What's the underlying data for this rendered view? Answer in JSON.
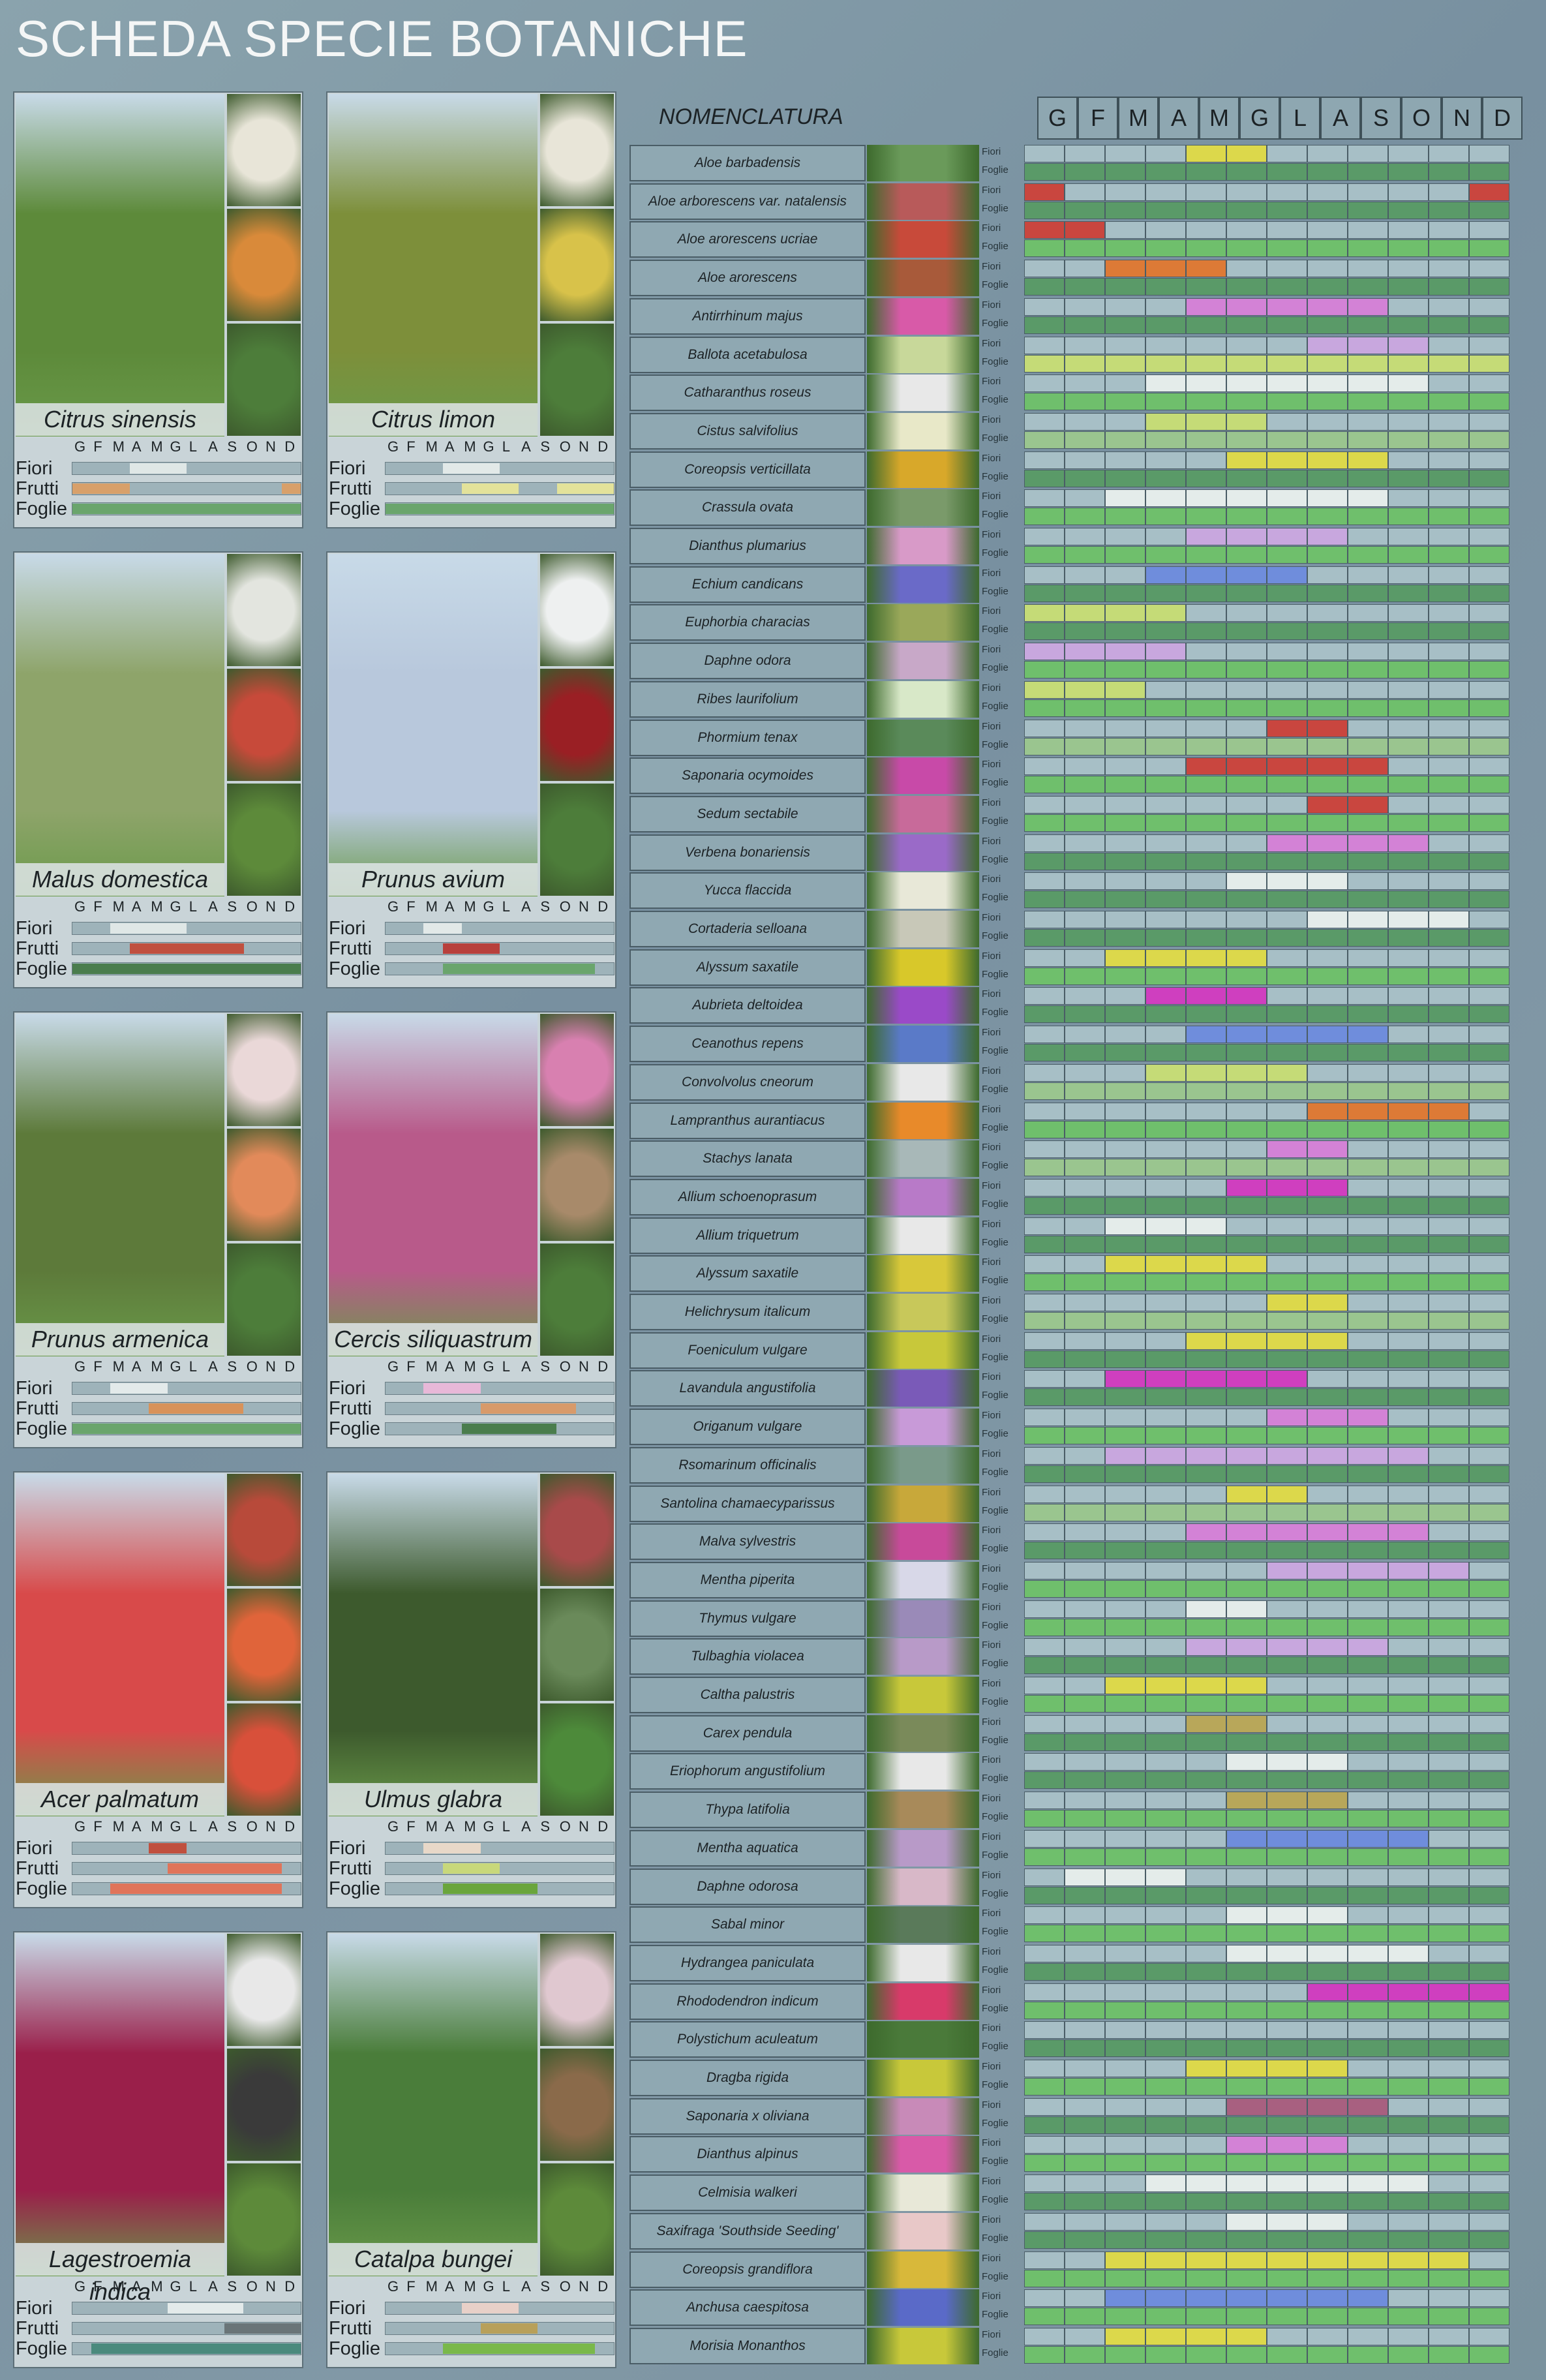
{
  "title": "SCHEDA SPECIE BOTANICHE",
  "months": [
    "G",
    "F",
    "M",
    "A",
    "M",
    "G",
    "L",
    "A",
    "S",
    "O",
    "N",
    "D"
  ],
  "card_labels": {
    "fiori": "Fiori",
    "frutti": "Frutti",
    "foglie": "Foglie"
  },
  "colors": {
    "fogliaA": "#5a9a68",
    "fogliaB": "#6fbf6c",
    "fogliaC": "#9ac58f",
    "grigio": "#a7bfc6",
    "bianco": "#e4ecea",
    "giallo": "#dcd84b",
    "rosso": "#c9463f",
    "rosa": "#d382d6",
    "lilla": "#c8a7de",
    "arancio": "#dd7a36",
    "magenta": "#cf3fbf",
    "blu": "#6f8ddc",
    "verdechiaro": "#c5db77",
    "ocra": "#b8a75a",
    "porpora": "#a86080"
  },
  "cards": [
    {
      "name": "Citrus sinensis",
      "photo": "#5d8a3a",
      "thumbs": [
        "#e8e5d8",
        "#d98a3a",
        "#4d7d3a"
      ],
      "fiori": {
        "c": "#dfe7e6",
        "s": [
          3,
          6
        ]
      },
      "frutti": {
        "c": "#d8a06a",
        "s": [
          0,
          3
        ],
        "s2": [
          11,
          12
        ]
      },
      "foglie": {
        "c": "#6aa56c",
        "s": [
          0,
          12
        ]
      }
    },
    {
      "name": "Citrus limon",
      "photo": "#7d8f3a",
      "thumbs": [
        "#e8e5d8",
        "#d8c24a",
        "#4d7d3a"
      ],
      "fiori": {
        "c": "#e2e9e8",
        "s": [
          3,
          6
        ]
      },
      "frutti": {
        "c": "#e3e29a",
        "s": [
          4,
          7
        ],
        "s2": [
          9,
          12
        ]
      },
      "foglie": {
        "c": "#6aa56c",
        "s": [
          0,
          12
        ]
      }
    },
    {
      "name": "Malus domestica",
      "photo": "#8ea46a",
      "thumbs": [
        "#e3e5df",
        "#c74a3a",
        "#5d8a3a"
      ],
      "fiori": {
        "c": "#dfe7e6",
        "s": [
          2,
          6
        ]
      },
      "frutti": {
        "c": "#c0503f",
        "s": [
          3,
          9
        ]
      },
      "foglie": {
        "c": "#4a7d4d",
        "s": [
          0,
          12
        ]
      }
    },
    {
      "name": "Prunus avium",
      "photo": "#b8c8dc",
      "thumbs": [
        "#eef0f0",
        "#9a1f24",
        "#4d7d3a"
      ],
      "fiori": {
        "c": "#e2e9e8",
        "s": [
          2,
          4
        ]
      },
      "frutti": {
        "c": "#b8403c",
        "s": [
          3,
          6
        ]
      },
      "foglie": {
        "c": "#6aa56c",
        "s": [
          3,
          11
        ]
      }
    },
    {
      "name": "Prunus armenica",
      "photo": "#5d7a3a",
      "thumbs": [
        "#ead8d8",
        "#e28a5a",
        "#4d7d3a"
      ],
      "fiori": {
        "c": "#e3eaea",
        "s": [
          2,
          5
        ]
      },
      "frutti": {
        "c": "#d8925a",
        "s": [
          4,
          9
        ]
      },
      "foglie": {
        "c": "#6aa56c",
        "s": [
          0,
          12
        ]
      }
    },
    {
      "name": "Cercis siliquastrum",
      "photo": "#b85a8a",
      "thumbs": [
        "#d880b0",
        "#a88a6a",
        "#4d7d3a"
      ],
      "fiori": {
        "c": "#e8b8d8",
        "s": [
          2,
          5
        ]
      },
      "frutti": {
        "c": "#d89a6a",
        "s": [
          5,
          10
        ]
      },
      "foglie": {
        "c": "#4a7d4d",
        "s": [
          4,
          9
        ]
      }
    },
    {
      "name": "Acer palmatum",
      "photo": "#d84a4a",
      "thumbs": [
        "#b84a3a",
        "#e0643a",
        "#d8503a"
      ],
      "fiori": {
        "c": "#c0503f",
        "s": [
          4,
          6
        ]
      },
      "frutti": {
        "c": "#e0745a",
        "s": [
          5,
          11
        ]
      },
      "foglie": {
        "c": "#e0745a",
        "s": [
          2,
          11
        ]
      }
    },
    {
      "name": "Ulmus glabra",
      "photo": "#3d5a2d",
      "thumbs": [
        "#a84a4a",
        "#6a8a5a",
        "#4d8a3a"
      ],
      "fiori": {
        "c": "#e8d8c8",
        "s": [
          2,
          5
        ]
      },
      "frutti": {
        "c": "#c8d87a",
        "s": [
          3,
          6
        ]
      },
      "foglie": {
        "c": "#6aa53c",
        "s": [
          3,
          8
        ]
      }
    },
    {
      "name": "Lagestroemia indica",
      "photo": "#9a1f4a",
      "thumbs": [
        "#e8e8e8",
        "#3a3a3a",
        "#5d8a3a"
      ],
      "fiori": {
        "c": "#e3eaea",
        "s": [
          5,
          9
        ]
      },
      "frutti": {
        "c": "#6a7578",
        "s": [
          8,
          12
        ]
      },
      "foglie": {
        "c": "#4a8a7d",
        "s": [
          1,
          12
        ]
      }
    },
    {
      "name": "Catalpa bungei",
      "photo": "#4a7d3a",
      "thumbs": [
        "#e0c8d0",
        "#8a6a4a",
        "#5d8a3a"
      ],
      "fiori": {
        "c": "#e8d0c8",
        "s": [
          4,
          7
        ]
      },
      "frutti": {
        "c": "#b8a05a",
        "s": [
          5,
          8
        ]
      },
      "foglie": {
        "c": "#7ab84a",
        "s": [
          3,
          11
        ]
      }
    }
  ],
  "table": {
    "header": "NOMENCLATURA",
    "fiori_label": "Fiori",
    "foglie_label": "Foglie",
    "plants": [
      {
        "name": "Aloe barbadensis",
        "img": "#6a9a5a",
        "fl": [
          "giallo",
          4,
          6
        ],
        "fo": "fogliaA"
      },
      {
        "name": "Aloe arborescens var. natalensis",
        "img": "#b85a5a",
        "fl": [
          "rosso",
          0,
          1
        ],
        "fl2": [
          "rosso",
          11,
          12
        ],
        "fo": "fogliaA"
      },
      {
        "name": "Aloe arorescens ucriae",
        "img": "#c84a3a",
        "fl": [
          "rosso",
          0,
          2
        ],
        "fo": "fogliaB"
      },
      {
        "name": "Aloe arorescens",
        "img": "#a85a3a",
        "fl": [
          "arancio",
          2,
          5
        ],
        "fo": "fogliaA"
      },
      {
        "name": "Antirrhinum majus",
        "img": "#d85aa8",
        "fl": [
          "rosa",
          4,
          9
        ],
        "fo": "fogliaA"
      },
      {
        "name": "Ballota acetabulosa",
        "img": "#c8d89a",
        "fl": [
          "lilla",
          7,
          10
        ],
        "fo": "verdechiaro"
      },
      {
        "name": "Catharanthus roseus",
        "img": "#e8e8e8",
        "fl": [
          "bianco",
          3,
          10
        ],
        "fo": "fogliaB"
      },
      {
        "name": "Cistus salvifolius",
        "img": "#e8e8c8",
        "fl": [
          "verdechiaro",
          3,
          6
        ],
        "fo": "fogliaC"
      },
      {
        "name": "Coreopsis verticillata",
        "img": "#d8a82a",
        "fl": [
          "giallo",
          5,
          9
        ],
        "fo": "fogliaA"
      },
      {
        "name": "Crassula ovata",
        "img": "#7a9a6a",
        "fl": [
          "bianco",
          2,
          9
        ],
        "fo": "fogliaB"
      },
      {
        "name": "Dianthus plumarius",
        "img": "#d89ac8",
        "fl": [
          "lilla",
          4,
          8
        ],
        "fo": "fogliaB"
      },
      {
        "name": "Echium candicans",
        "img": "#6a6ac8",
        "fl": [
          "blu",
          3,
          7
        ],
        "fo": "fogliaA"
      },
      {
        "name": "Euphorbia characias",
        "img": "#9aa85a",
        "fl": [
          "verdechiaro",
          0,
          4
        ],
        "fo": "fogliaA"
      },
      {
        "name": "Daphne odora",
        "img": "#c8a8c8",
        "fl": [
          "lilla",
          0,
          4
        ],
        "fo": "fogliaB"
      },
      {
        "name": "Ribes laurifolium",
        "img": "#d8e8c8",
        "fl": [
          "verdechiaro",
          0,
          3
        ],
        "fo": "fogliaB"
      },
      {
        "name": "Phormium tenax",
        "img": "#5a8a5a",
        "fl": [
          "rosso",
          6,
          8
        ],
        "fo": "fogliaC"
      },
      {
        "name": "Saponaria ocymoides",
        "img": "#c84aa8",
        "fl": [
          "rosso",
          4,
          9
        ],
        "fo": "fogliaB"
      },
      {
        "name": "Sedum sectabile",
        "img": "#c86a9a",
        "fl": [
          "rosso",
          7,
          9
        ],
        "fo": "fogliaB"
      },
      {
        "name": "Verbena bonariensis",
        "img": "#9a6ac8",
        "fl": [
          "rosa",
          6,
          10
        ],
        "fo": "fogliaA"
      },
      {
        "name": "Yucca flaccida",
        "img": "#e8e8d8",
        "fl": [
          "bianco",
          5,
          8
        ],
        "fo": "fogliaA"
      },
      {
        "name": "Cortaderia selloana",
        "img": "#c8c8b8",
        "fl": [
          "bianco",
          7,
          11
        ],
        "fo": "fogliaA"
      },
      {
        "name": "Alyssum saxatile",
        "img": "#d8c82a",
        "fl": [
          "giallo",
          2,
          6
        ],
        "fo": "fogliaB"
      },
      {
        "name": "Aubrieta deltoidea",
        "img": "#9a4ac8",
        "fl": [
          "magenta",
          3,
          6
        ],
        "fo": "fogliaA"
      },
      {
        "name": "Ceanothus repens",
        "img": "#5a7ac8",
        "fl": [
          "blu",
          4,
          9
        ],
        "fo": "fogliaA"
      },
      {
        "name": "Convolvolus cneorum",
        "img": "#e8e8e8",
        "fl": [
          "verdechiaro",
          3,
          7
        ],
        "fo": "fogliaC"
      },
      {
        "name": "Lampranthus aurantiacus",
        "img": "#e88a2a",
        "fl": [
          "arancio",
          7,
          11
        ],
        "fo": "fogliaB"
      },
      {
        "name": "Stachys lanata",
        "img": "#a8b8b8",
        "fl": [
          "rosa",
          6,
          8
        ],
        "fo": "fogliaC"
      },
      {
        "name": "Allium schoenoprasum",
        "img": "#b87ac8",
        "fl": [
          "magenta",
          5,
          8
        ],
        "fo": "fogliaA"
      },
      {
        "name": "Allium triquetrum",
        "img": "#e8e8e8",
        "fl": [
          "bianco",
          2,
          5
        ],
        "fo": "fogliaA"
      },
      {
        "name": "Alyssum saxatile",
        "img": "#d8c83a",
        "fl": [
          "giallo",
          2,
          6
        ],
        "fo": "fogliaB"
      },
      {
        "name": "Helichrysum italicum",
        "img": "#c8c85a",
        "fl": [
          "giallo",
          6,
          8
        ],
        "fo": "fogliaC"
      },
      {
        "name": "Foeniculum vulgare",
        "img": "#c8c83a",
        "fl": [
          "giallo",
          4,
          8
        ],
        "fo": "fogliaA"
      },
      {
        "name": "Lavandula angustifolia",
        "img": "#7a5ab8",
        "fl": [
          "magenta",
          2,
          7
        ],
        "fo": "fogliaA"
      },
      {
        "name": "Origanum vulgare",
        "img": "#c89ad8",
        "fl": [
          "rosa",
          6,
          9
        ],
        "fo": "fogliaB"
      },
      {
        "name": "Rsomarinum officinalis",
        "img": "#7a9a8a",
        "fl": [
          "lilla",
          2,
          10
        ],
        "fo": "fogliaA"
      },
      {
        "name": "Santolina chamaecyparissus",
        "img": "#c8a83a",
        "fl": [
          "giallo",
          5,
          7
        ],
        "fo": "fogliaC"
      },
      {
        "name": "Malva sylvestris",
        "img": "#c84a9a",
        "fl": [
          "rosa",
          4,
          10
        ],
        "fo": "fogliaA"
      },
      {
        "name": "Mentha piperita",
        "img": "#d8d8e8",
        "fl": [
          "lilla",
          6,
          11
        ],
        "fo": "fogliaB"
      },
      {
        "name": "Thymus vulgare",
        "img": "#9a8ab8",
        "fl": [
          "bianco",
          4,
          6
        ],
        "fo": "fogliaB"
      },
      {
        "name": "Tulbaghia violacea",
        "img": "#b89ac8",
        "fl": [
          "lilla",
          4,
          9
        ],
        "fo": "fogliaA"
      },
      {
        "name": "Caltha palustris",
        "img": "#c8c83a",
        "fl": [
          "giallo",
          2,
          6
        ],
        "fo": "fogliaB"
      },
      {
        "name": "Carex pendula",
        "img": "#7a8a5a",
        "fl": [
          "ocra",
          4,
          6
        ],
        "fo": "fogliaA"
      },
      {
        "name": "Eriophorum angustifolium",
        "img": "#e8e8e8",
        "fl": [
          "bianco",
          5,
          8
        ],
        "fo": "fogliaA"
      },
      {
        "name": "Thypa latifolia",
        "img": "#a88a5a",
        "fl": [
          "ocra",
          5,
          8
        ],
        "fo": "fogliaB"
      },
      {
        "name": "Mentha aquatica",
        "img": "#b89ac8",
        "fl": [
          "blu",
          5,
          10
        ],
        "fo": "fogliaB"
      },
      {
        "name": "Daphne odorosa",
        "img": "#d8b8c8",
        "fl": [
          "bianco",
          1,
          4
        ],
        "fo": "fogliaA"
      },
      {
        "name": "Sabal minor",
        "img": "#5a7a5a",
        "fl": [
          "bianco",
          5,
          8
        ],
        "fo": "fogliaB"
      },
      {
        "name": "Hydrangea paniculata",
        "img": "#e8e8e8",
        "fl": [
          "bianco",
          5,
          10
        ],
        "fo": "fogliaA"
      },
      {
        "name": "Rhododendron indicum",
        "img": "#d83a6a",
        "fl": [
          "magenta",
          7,
          12
        ],
        "fo": "fogliaB"
      },
      {
        "name": "Polystichum aculeatum",
        "img": "#4a7a3a",
        "fl": [
          "grigio",
          0,
          0
        ],
        "fo": "fogliaA"
      },
      {
        "name": "Dragba rigida",
        "img": "#c8c83a",
        "fl": [
          "giallo",
          4,
          8
        ],
        "fo": "fogliaB"
      },
      {
        "name": "Saponaria x oliviana",
        "img": "#c88ab8",
        "fl": [
          "porpora",
          5,
          9
        ],
        "fo": "fogliaA"
      },
      {
        "name": "Dianthus alpinus",
        "img": "#d85aa8",
        "fl": [
          "rosa",
          5,
          8
        ],
        "fo": "fogliaB"
      },
      {
        "name": "Celmisia walkeri",
        "img": "#e8e8d8",
        "fl": [
          "bianco",
          3,
          10
        ],
        "fo": "fogliaA"
      },
      {
        "name": "Saxifraga 'Southside Seeding'",
        "img": "#e8c8c8",
        "fl": [
          "bianco",
          5,
          8
        ],
        "fo": "fogliaA"
      },
      {
        "name": "Coreopsis grandiflora",
        "img": "#d8b83a",
        "fl": [
          "giallo",
          2,
          11
        ],
        "fo": "fogliaB"
      },
      {
        "name": "Anchusa caespitosa",
        "img": "#5a6ac8",
        "fl": [
          "blu",
          2,
          9
        ],
        "fo": "fogliaB"
      },
      {
        "name": "Morisia Monanthos",
        "img": "#c8c83a",
        "fl": [
          "giallo",
          2,
          6
        ],
        "fo": "fogliaB"
      }
    ]
  }
}
